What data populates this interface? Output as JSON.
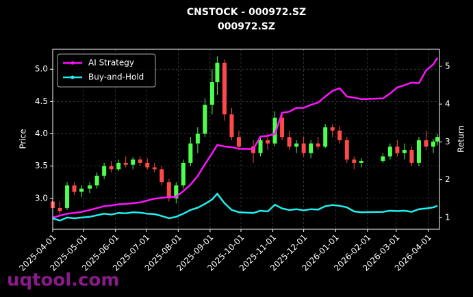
{
  "chart_data": {
    "type": "candlestick",
    "title": "CNSTOCK - 000972.SZ",
    "subtitle": "000972.SZ",
    "ylabel": "Price",
    "y2label": "Return",
    "watermark": "uqtool.com",
    "up_color": "#4cff4c",
    "down_color": "#ff4848",
    "grid": true,
    "legend": "upper left",
    "xlim": [
      "2025-04-01",
      "2026-04-12"
    ],
    "xticks": [
      "2025-04-01",
      "2025-05-01",
      "2025-06-01",
      "2025-07-01",
      "2025-08-01",
      "2025-09-01",
      "2025-10-01",
      "2025-11-01",
      "2025-12-01",
      "2026-01-01",
      "2026-02-01",
      "2026-03-01",
      "2026-04-01"
    ],
    "ylim": [
      2.52,
      5.31
    ],
    "yticks": [
      {
        "value": 3,
        "label": "3.0"
      },
      3.5,
      {
        "value": 4,
        "label": "4.0"
      },
      4.5,
      {
        "value": 5,
        "label": "5.0"
      }
    ],
    "y2lim": [
      0.69,
      5.45
    ],
    "y2ticks": [
      1,
      2,
      3,
      4,
      5
    ],
    "x": [
      "2025-04-01",
      "2025-04-08",
      "2025-04-15",
      "2025-04-22",
      "2025-04-29",
      "2025-05-07",
      "2025-05-14",
      "2025-05-21",
      "2025-05-28",
      "2025-06-04",
      "2025-06-11",
      "2025-06-18",
      "2025-06-25",
      "2025-07-02",
      "2025-07-09",
      "2025-07-16",
      "2025-07-23",
      "2025-07-30",
      "2025-08-06",
      "2025-08-13",
      "2025-08-20",
      "2025-08-27",
      "2025-09-03",
      "2025-09-08",
      "2025-09-15",
      "2025-09-22",
      "2025-09-29",
      "2025-10-13",
      "2025-10-20",
      "2025-10-27",
      "2025-11-03",
      "2025-11-10",
      "2025-11-17",
      "2025-11-24",
      "2025-12-01",
      "2025-12-08",
      "2025-12-15",
      "2025-12-22",
      "2025-12-29",
      "2026-01-05",
      "2026-01-12",
      "2026-01-19",
      "2026-01-26",
      "2026-02-16",
      "2026-02-23",
      "2026-03-02",
      "2026-03-09",
      "2026-03-16",
      "2026-03-23",
      "2026-03-30",
      "2026-04-06",
      "2026-04-10"
    ],
    "open": [
      2.95,
      2.85,
      2.85,
      3.2,
      3.1,
      3.15,
      3.2,
      3.35,
      3.5,
      3.45,
      3.55,
      3.52,
      3.6,
      3.55,
      3.48,
      3.45,
      3.25,
      3.0,
      3.2,
      3.55,
      3.85,
      4.0,
      4.45,
      4.8,
      5.1,
      4.3,
      3.95,
      3.8,
      3.7,
      3.9,
      3.85,
      4.25,
      3.95,
      3.8,
      3.85,
      3.7,
      3.85,
      3.8,
      4.1,
      4.05,
      3.9,
      3.6,
      3.55,
      3.58,
      3.65,
      3.8,
      3.7,
      3.75,
      3.55,
      3.9,
      3.8,
      3.88
    ],
    "high": [
      3.05,
      2.95,
      3.25,
      3.25,
      3.2,
      3.25,
      3.4,
      3.55,
      3.58,
      3.6,
      3.65,
      3.64,
      3.65,
      3.62,
      3.55,
      3.5,
      3.3,
      3.25,
      3.6,
      3.95,
      4.1,
      4.55,
      5.0,
      5.2,
      5.15,
      4.4,
      4.05,
      3.9,
      3.95,
      4.0,
      4.35,
      4.3,
      4.05,
      3.9,
      3.95,
      3.9,
      3.95,
      4.15,
      4.15,
      4.12,
      3.95,
      3.65,
      3.62,
      3.7,
      3.85,
      3.9,
      3.85,
      3.8,
      3.95,
      4.05,
      3.92,
      4.0
    ],
    "low": [
      2.8,
      2.72,
      2.82,
      3.05,
      3.02,
      3.08,
      3.15,
      3.3,
      3.4,
      3.42,
      3.48,
      3.45,
      3.5,
      3.45,
      3.4,
      3.2,
      2.95,
      2.92,
      3.15,
      3.5,
      3.7,
      3.95,
      4.3,
      4.6,
      4.2,
      3.9,
      3.75,
      3.55,
      3.65,
      3.75,
      3.8,
      3.9,
      3.75,
      3.7,
      3.65,
      3.62,
      3.75,
      3.78,
      3.95,
      3.85,
      3.55,
      3.45,
      3.48,
      3.55,
      3.6,
      3.65,
      3.6,
      3.5,
      3.5,
      3.75,
      3.7,
      3.82
    ],
    "close": [
      2.85,
      2.8,
      3.2,
      3.1,
      3.15,
      3.2,
      3.35,
      3.5,
      3.45,
      3.55,
      3.52,
      3.6,
      3.55,
      3.48,
      3.45,
      3.25,
      3.0,
      3.2,
      3.55,
      3.85,
      4.0,
      4.45,
      4.8,
      5.1,
      4.3,
      3.95,
      3.8,
      3.7,
      3.9,
      3.85,
      4.25,
      3.95,
      3.8,
      3.85,
      3.7,
      3.85,
      3.8,
      4.1,
      4.05,
      3.9,
      3.6,
      3.55,
      3.58,
      3.65,
      3.8,
      3.7,
      3.75,
      3.55,
      3.9,
      3.8,
      3.88,
      3.95
    ],
    "series": [
      {
        "name": "AI Strategy",
        "color": "#ff14ff",
        "axis": "y2",
        "values": [
          1.0,
          1.05,
          1.1,
          1.12,
          1.15,
          1.2,
          1.25,
          1.3,
          1.32,
          1.35,
          1.36,
          1.38,
          1.4,
          1.45,
          1.5,
          1.52,
          1.54,
          1.55,
          1.7,
          1.87,
          2.1,
          2.41,
          2.7,
          2.92,
          2.88,
          2.86,
          2.82,
          2.81,
          3.14,
          3.16,
          3.21,
          3.77,
          3.8,
          3.9,
          3.9,
          3.98,
          4.04,
          4.2,
          4.35,
          4.42,
          4.2,
          4.17,
          4.13,
          4.15,
          4.28,
          4.44,
          4.5,
          4.57,
          4.55,
          4.89,
          5.05,
          5.22
        ]
      },
      {
        "name": "Buy-and-Hold",
        "color": "#1ef0f0",
        "axis": "y2",
        "values": [
          0.98,
          0.92,
          1.0,
          0.98,
          1.0,
          1.02,
          1.06,
          1.1,
          1.08,
          1.12,
          1.11,
          1.14,
          1.13,
          1.1,
          1.09,
          1.04,
          0.98,
          1.02,
          1.1,
          1.2,
          1.26,
          1.36,
          1.48,
          1.63,
          1.38,
          1.2,
          1.14,
          1.12,
          1.18,
          1.16,
          1.34,
          1.24,
          1.2,
          1.22,
          1.19,
          1.22,
          1.21,
          1.3,
          1.33,
          1.31,
          1.27,
          1.16,
          1.14,
          1.15,
          1.18,
          1.17,
          1.18,
          1.15,
          1.22,
          1.24,
          1.27,
          1.31
        ]
      }
    ]
  }
}
